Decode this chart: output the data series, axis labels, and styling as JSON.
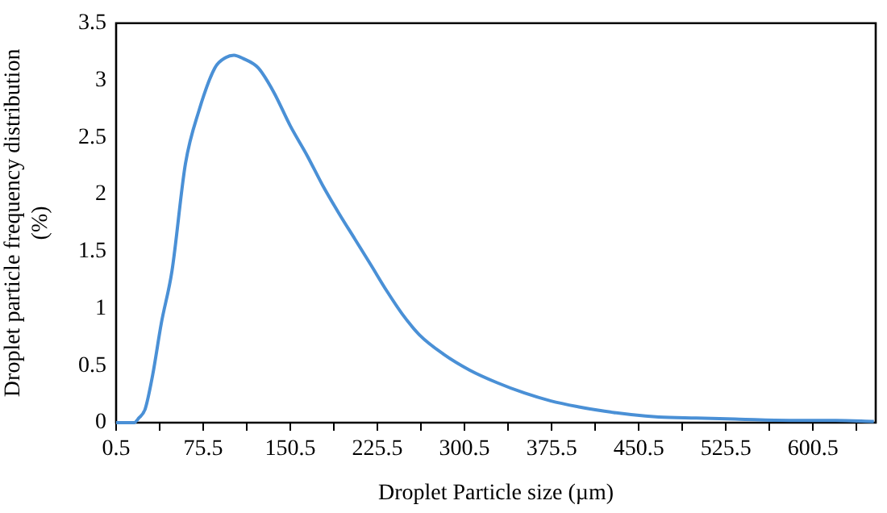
{
  "chart_data": {
    "type": "line",
    "xlabel": "Droplet Particle size (µm)",
    "ylabel": "Droplet particle frequency distribution\n(%)",
    "x": [
      0.5,
      10,
      16,
      20,
      25.5,
      32,
      39.4,
      48.6,
      60.2,
      71.7,
      85.6,
      95,
      101.9,
      110,
      122.7,
      136,
      150.5,
      165,
      178.3,
      192,
      206,
      220,
      233.8,
      247,
      261.6,
      282.4,
      305,
      328.6,
      352,
      374.9,
      398,
      421,
      444,
      467.6,
      500,
      537,
      580,
      620,
      652.9
    ],
    "series": [
      {
        "color": "#4a90d6",
        "values": [
          0,
          0,
          0,
          0.04,
          0.12,
          0.42,
          0.87,
          1.33,
          2.27,
          2.73,
          3.11,
          3.2,
          3.22,
          3.19,
          3.11,
          2.9,
          2.6,
          2.34,
          2.08,
          1.84,
          1.61,
          1.38,
          1.15,
          0.95,
          0.77,
          0.6,
          0.46,
          0.35,
          0.26,
          0.19,
          0.14,
          0.1,
          0.07,
          0.05,
          0.04,
          0.03,
          0.02,
          0.02,
          0.01
        ]
      }
    ],
    "xlim": [
      0.5,
      654.5
    ],
    "xticks": [
      0.5,
      {
        "value": 38,
        "label": null
      },
      75.5,
      {
        "value": 113,
        "label": null
      },
      150.5,
      {
        "value": 188,
        "label": null
      },
      225.5,
      {
        "value": 263,
        "label": null
      },
      300.5,
      {
        "value": 338,
        "label": null
      },
      375.5,
      {
        "value": 413,
        "label": null
      },
      450.5,
      {
        "value": 488,
        "label": null
      },
      525.5,
      {
        "value": 563,
        "label": null
      },
      600.5,
      {
        "value": 638,
        "label": null
      }
    ],
    "ylim": [
      0,
      3.5
    ],
    "yticks": [
      0,
      0.5,
      1,
      1.5,
      2,
      2.5,
      3,
      3.5
    ],
    "grid": false,
    "legend": false,
    "marker": "none",
    "line_style": "solid"
  }
}
